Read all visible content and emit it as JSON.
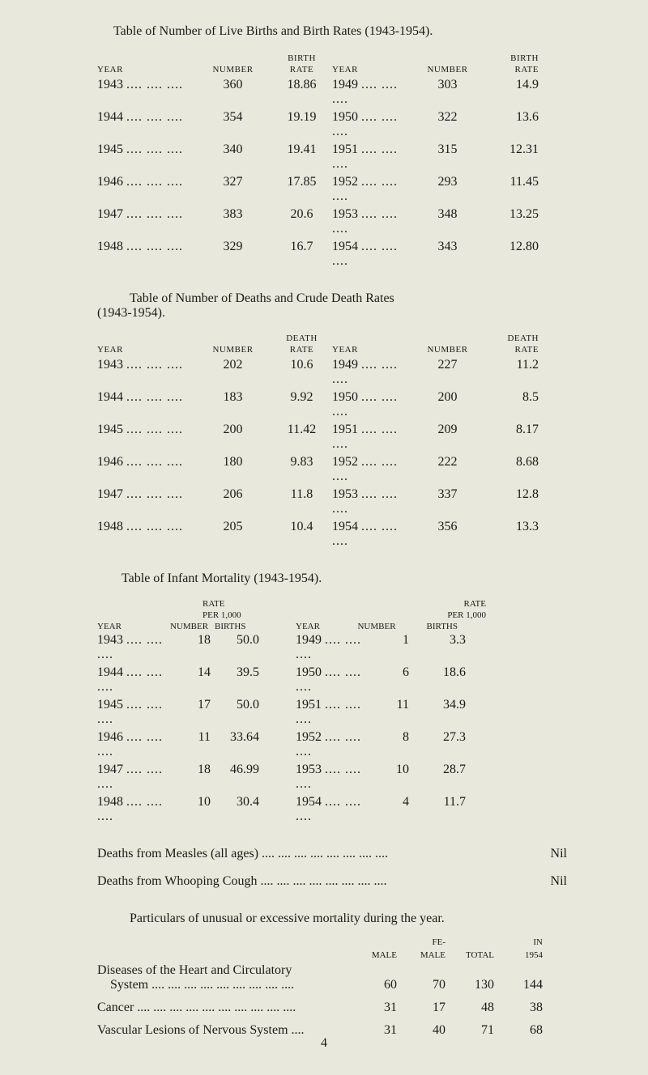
{
  "title1": "Table of Number of Live Births and Birth Rates (1943-1954).",
  "headers": {
    "year": "YEAR",
    "number": "NUMBER",
    "birth": "BIRTH",
    "rate": "RATE",
    "death": "DEATH",
    "rate_per": "RATE",
    "per1000": "PER 1,000",
    "births": "BIRTHS"
  },
  "births": {
    "left": [
      {
        "year": "1943",
        "dots": ".... .... ....",
        "num": "360",
        "rate": "18.86"
      },
      {
        "year": "1944",
        "dots": ".... .... ....",
        "num": "354",
        "rate": "19.19"
      },
      {
        "year": "1945",
        "dots": ".... .... ....",
        "num": "340",
        "rate": "19.41"
      },
      {
        "year": "1946",
        "dots": ".... .... ....",
        "num": "327",
        "rate": "17.85"
      },
      {
        "year": "1947",
        "dots": ".... .... ....",
        "num": "383",
        "rate": "20.6"
      },
      {
        "year": "1948",
        "dots": ".... .... ....",
        "num": "329",
        "rate": "16.7"
      }
    ],
    "right": [
      {
        "year": "1949",
        "dots": ".... .... ....",
        "num": "303",
        "rate": "14.9"
      },
      {
        "year": "1950",
        "dots": ".... .... ....",
        "num": "322",
        "rate": "13.6"
      },
      {
        "year": "1951",
        "dots": ".... .... ....",
        "num": "315",
        "rate": "12.31"
      },
      {
        "year": "1952",
        "dots": ".... .... ....",
        "num": "293",
        "rate": "11.45"
      },
      {
        "year": "1953",
        "dots": ".... .... ....",
        "num": "348",
        "rate": "13.25"
      },
      {
        "year": "1954",
        "dots": ".... .... ....",
        "num": "343",
        "rate": "12.80"
      }
    ]
  },
  "title2a": "Table of Number of Deaths and Crude Death Rates",
  "title2b": "(1943-1954).",
  "deaths": {
    "left": [
      {
        "year": "1943",
        "dots": ".... .... ....",
        "num": "202",
        "rate": "10.6"
      },
      {
        "year": "1944",
        "dots": ".... .... ....",
        "num": "183",
        "rate": "9.92"
      },
      {
        "year": "1945",
        "dots": ".... .... ....",
        "num": "200",
        "rate": "11.42"
      },
      {
        "year": "1946",
        "dots": ".... .... ....",
        "num": "180",
        "rate": "9.83"
      },
      {
        "year": "1947",
        "dots": ".... .... ....",
        "num": "206",
        "rate": "11.8"
      },
      {
        "year": "1948",
        "dots": ".... .... ....",
        "num": "205",
        "rate": "10.4"
      }
    ],
    "right": [
      {
        "year": "1949",
        "dots": ".... .... ....",
        "num": "227",
        "rate": "11.2"
      },
      {
        "year": "1950",
        "dots": ".... .... ....",
        "num": "200",
        "rate": "8.5"
      },
      {
        "year": "1951",
        "dots": ".... .... ....",
        "num": "209",
        "rate": "8.17"
      },
      {
        "year": "1952",
        "dots": ".... .... ....",
        "num": "222",
        "rate": "8.68"
      },
      {
        "year": "1953",
        "dots": ".... .... ....",
        "num": "337",
        "rate": "12.8"
      },
      {
        "year": "1954",
        "dots": ".... .... ....",
        "num": "356",
        "rate": "13.3"
      }
    ]
  },
  "title3": "Table of Infant Mortality (1943-1954).",
  "infant": {
    "left": [
      {
        "year": "1943",
        "dots": ".... .... ....",
        "num": "18",
        "rate": "50.0"
      },
      {
        "year": "1944",
        "dots": ".... .... ....",
        "num": "14",
        "rate": "39.5"
      },
      {
        "year": "1945",
        "dots": ".... .... ....",
        "num": "17",
        "rate": "50.0"
      },
      {
        "year": "1946",
        "dots": ".... .... ....",
        "num": "11",
        "rate": "33.64"
      },
      {
        "year": "1947",
        "dots": ".... .... ....",
        "num": "18",
        "rate": "46.99"
      },
      {
        "year": "1948",
        "dots": ".... .... ....",
        "num": "10",
        "rate": "30.4"
      }
    ],
    "right": [
      {
        "year": "1949",
        "dots": ".... .... ....",
        "num": "1",
        "rate": "3.3"
      },
      {
        "year": "1950",
        "dots": ".... .... ....",
        "num": "6",
        "rate": "18.6"
      },
      {
        "year": "1951",
        "dots": ".... .... ....",
        "num": "11",
        "rate": "34.9"
      },
      {
        "year": "1952",
        "dots": ".... .... ....",
        "num": "8",
        "rate": "27.3"
      },
      {
        "year": "1953",
        "dots": ".... .... ....",
        "num": "10",
        "rate": "28.7"
      },
      {
        "year": "1954",
        "dots": ".... .... ....",
        "num": "4",
        "rate": "11.7"
      }
    ]
  },
  "measles": {
    "label": "Deaths from Measles (all ages) .... .... .... .... .... .... .... ....",
    "value": "Nil"
  },
  "whooping": {
    "label": "Deaths from Whooping Cough .... .... .... .... .... .... .... ....",
    "value": "Nil"
  },
  "mortality_para": "Particulars of unusual or excessive mortality during the year.",
  "mort_headers": {
    "male": "MALE",
    "fe": "FE-",
    "female": "MALE",
    "total": "TOTAL",
    "in": "IN",
    "year": "1954"
  },
  "mort_rows": [
    {
      "label1": "Diseases of the Heart and Circulatory",
      "label2": "System .... .... .... .... .... .... .... .... ....",
      "male": "60",
      "female": "70",
      "total": "130",
      "in": "144"
    },
    {
      "label1": "",
      "label2": "Cancer .... .... .... .... .... .... .... .... .... ....",
      "male": "31",
      "female": "17",
      "total": "48",
      "in": "38"
    },
    {
      "label1": "",
      "label2": "Vascular Lesions of Nervous System ....",
      "male": "31",
      "female": "40",
      "total": "71",
      "in": "68"
    }
  ],
  "page_number": "4"
}
